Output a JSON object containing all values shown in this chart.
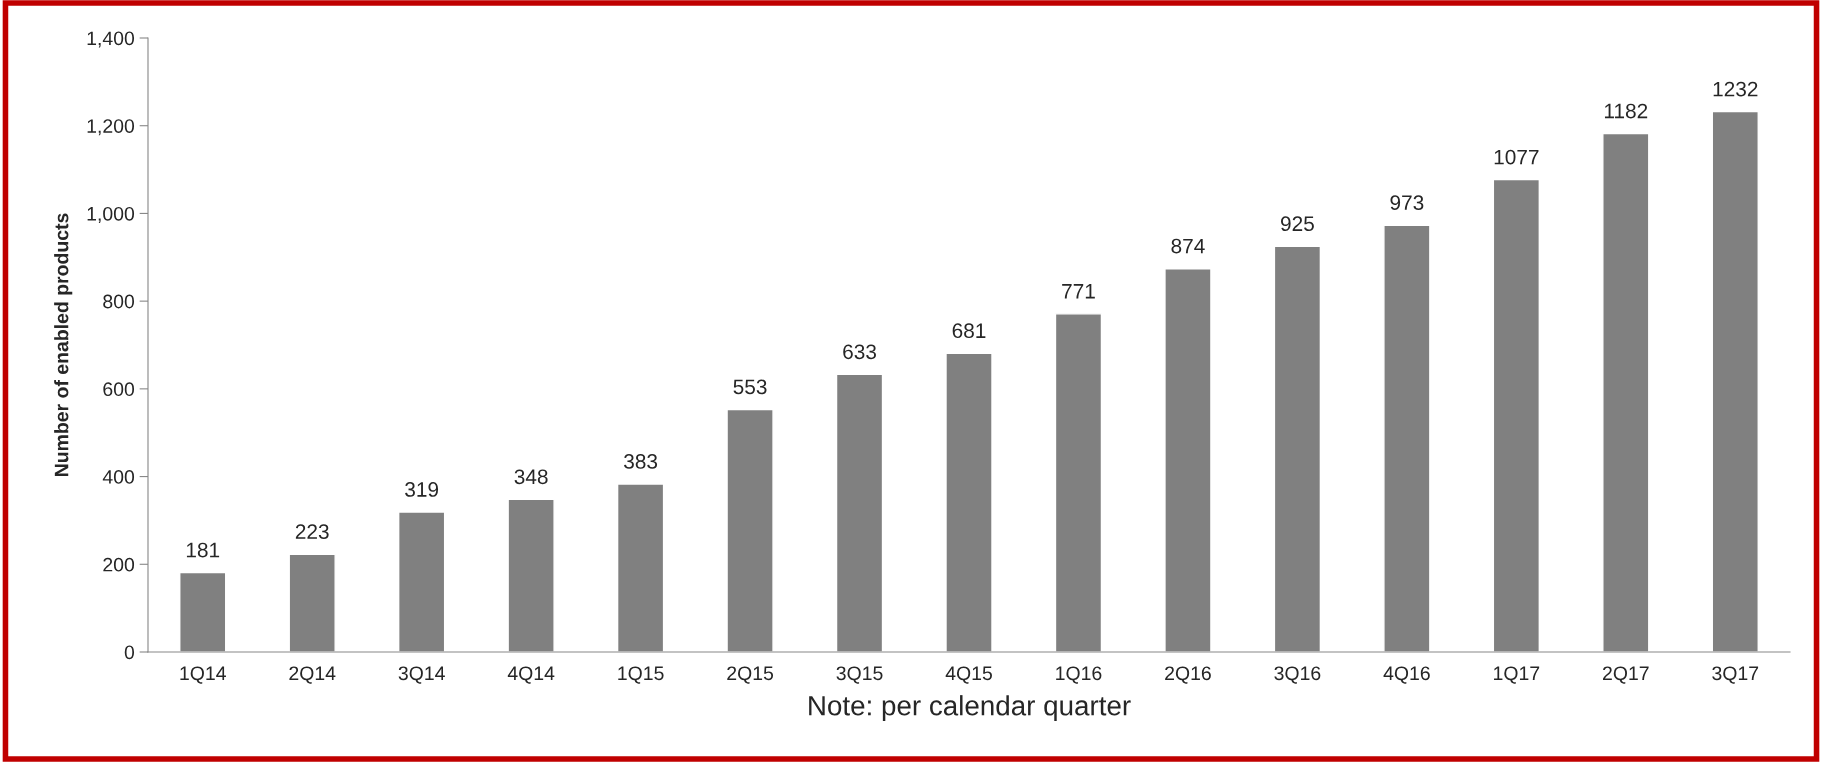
{
  "chart_data": {
    "type": "bar",
    "categories": [
      "1Q14",
      "2Q14",
      "3Q14",
      "4Q14",
      "1Q15",
      "2Q15",
      "3Q15",
      "4Q15",
      "1Q16",
      "2Q16",
      "3Q16",
      "4Q16",
      "1Q17",
      "2Q17",
      "3Q17"
    ],
    "values": [
      181,
      223,
      319,
      348,
      383,
      553,
      633,
      681,
      771,
      874,
      925,
      973,
      1077,
      1182,
      1232
    ],
    "color": "#808080",
    "xlabel": "Note: per calendar quarter",
    "ylabel": "Number of enabled products",
    "ylim": [
      0,
      1400
    ],
    "yticks": [
      0,
      {
        "value": 200,
        "label": "200"
      },
      400,
      600,
      800,
      {
        "value": 1000,
        "label": "1,000"
      },
      {
        "value": 1200,
        "label": "1,200"
      },
      {
        "value": 1400,
        "label": "1,400"
      }
    ],
    "data_labels": true,
    "grid": false
  }
}
